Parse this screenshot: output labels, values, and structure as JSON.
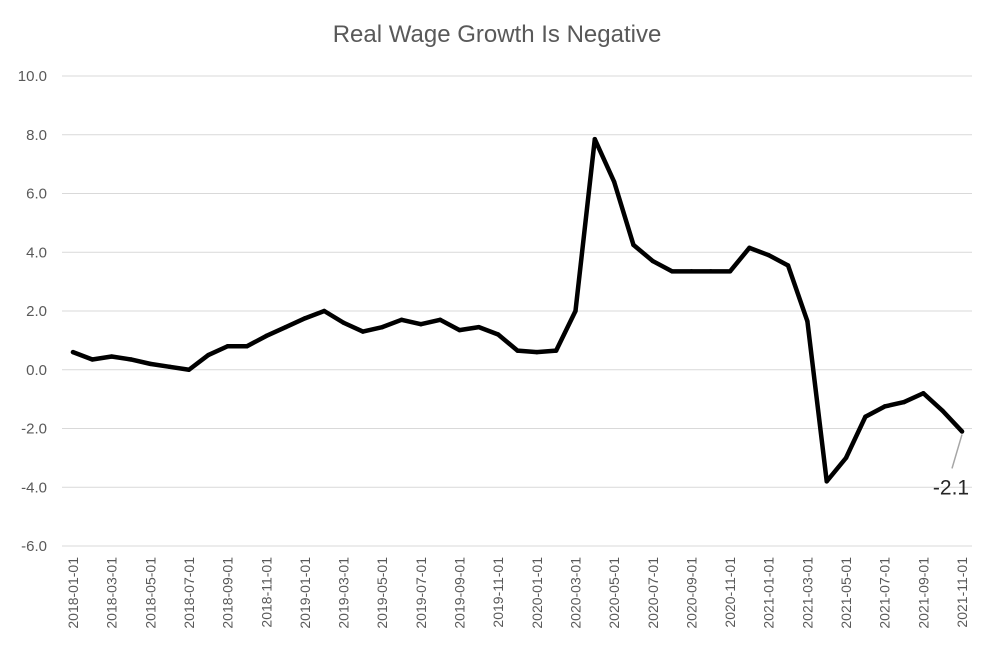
{
  "chart_data": {
    "type": "line",
    "title": "Real Wage Growth Is Negative",
    "xlabel": "",
    "ylabel": "",
    "ylim": [
      -6,
      10
    ],
    "yticks": [
      "-6.0",
      "-4.0",
      "-2.0",
      "0.0",
      "2.0",
      "4.0",
      "6.0",
      "8.0",
      "10.0"
    ],
    "grid": true,
    "line_color": "#000000",
    "x": [
      "2018-01-01",
      "2018-02-01",
      "2018-03-01",
      "2018-04-01",
      "2018-05-01",
      "2018-06-01",
      "2018-07-01",
      "2018-08-01",
      "2018-09-01",
      "2018-10-01",
      "2018-11-01",
      "2018-12-01",
      "2019-01-01",
      "2019-02-01",
      "2019-03-01",
      "2019-04-01",
      "2019-05-01",
      "2019-06-01",
      "2019-07-01",
      "2019-08-01",
      "2019-09-01",
      "2019-10-01",
      "2019-11-01",
      "2019-12-01",
      "2020-01-01",
      "2020-02-01",
      "2020-03-01",
      "2020-04-01",
      "2020-05-01",
      "2020-06-01",
      "2020-07-01",
      "2020-08-01",
      "2020-09-01",
      "2020-10-01",
      "2020-11-01",
      "2020-12-01",
      "2021-01-01",
      "2021-02-01",
      "2021-03-01",
      "2021-04-01",
      "2021-05-01",
      "2021-06-01",
      "2021-07-01",
      "2021-08-01",
      "2021-09-01",
      "2021-10-01",
      "2021-11-01"
    ],
    "xtick_labels": [
      "2018-01-01",
      "2018-03-01",
      "2018-05-01",
      "2018-07-01",
      "2018-09-01",
      "2018-11-01",
      "2019-01-01",
      "2019-03-01",
      "2019-05-01",
      "2019-07-01",
      "2019-09-01",
      "2019-11-01",
      "2020-01-01",
      "2020-03-01",
      "2020-05-01",
      "2020-07-01",
      "2020-09-01",
      "2020-11-01",
      "2021-01-01",
      "2021-03-01",
      "2021-05-01",
      "2021-07-01",
      "2021-09-01",
      "2021-11-01"
    ],
    "series": [
      {
        "values": [
          0.6,
          0.35,
          0.45,
          0.35,
          0.2,
          0.1,
          0.0,
          0.5,
          0.8,
          0.8,
          1.15,
          1.45,
          1.75,
          2.0,
          1.6,
          1.3,
          1.45,
          1.7,
          1.55,
          1.7,
          1.35,
          1.45,
          1.2,
          0.65,
          0.6,
          0.65,
          2.0,
          7.85,
          6.4,
          4.25,
          3.7,
          3.35,
          3.35,
          3.35,
          3.35,
          4.15,
          3.9,
          3.55,
          1.65,
          -3.8,
          -3.0,
          -1.6,
          -1.25,
          -1.1,
          -0.8,
          -1.4,
          -2.1
        ]
      }
    ],
    "annotations": [
      {
        "text": "-2.1",
        "x": "2021-11-01",
        "y": -2.1
      }
    ]
  }
}
